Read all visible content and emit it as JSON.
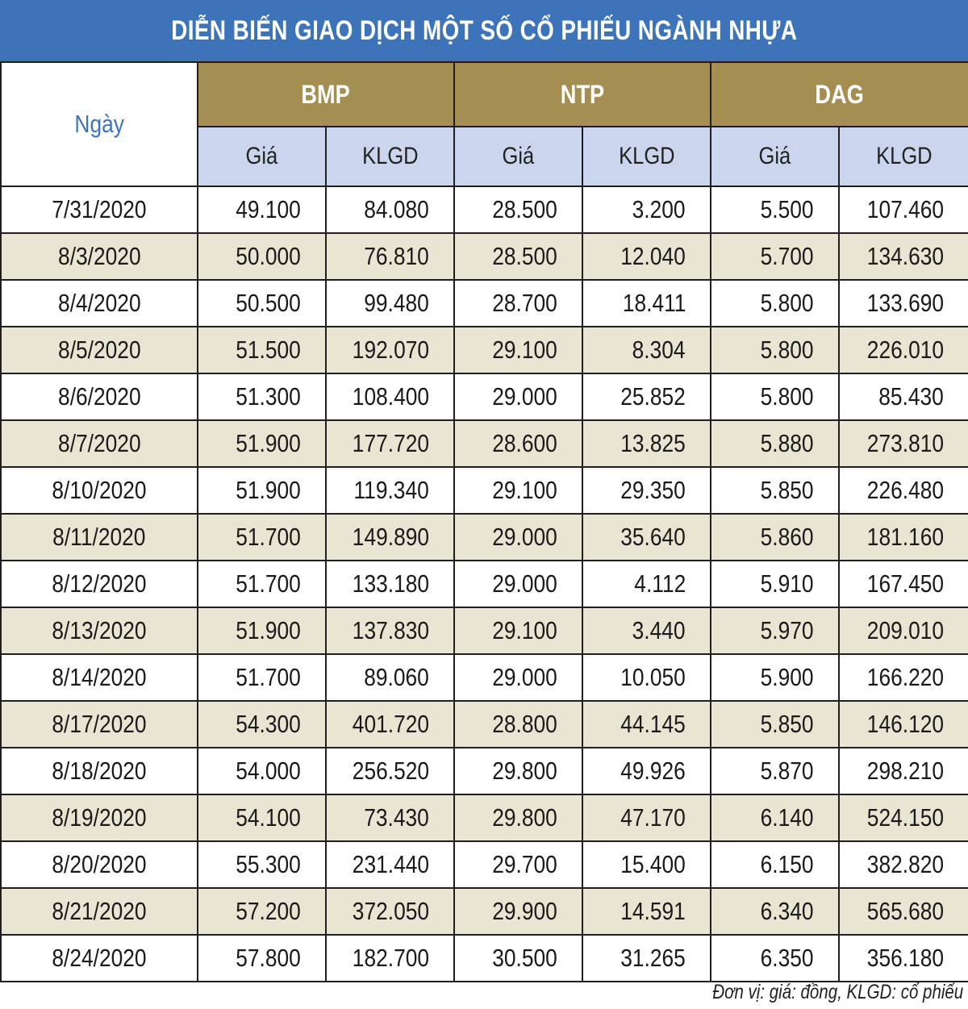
{
  "title": "DIỄN BIẾN GIAO DỊCH MỘT SỐ CỔ PHIẾU NGÀNH NHỰA",
  "colors": {
    "title_bg": "#3d74b9",
    "stock_header_bg": "#a58e52",
    "sub_header_bg": "#cbd6ee",
    "stripe_bg": "#e9e5d3"
  },
  "headers": {
    "date": "Ngày",
    "stocks": [
      "BMP",
      "NTP",
      "DAG"
    ],
    "price": "Giá",
    "volume": "KLGD"
  },
  "chart_data": {
    "type": "table",
    "title": "DIỄN BIẾN GIAO DỊCH MỘT SỐ CỔ PHIẾU NGÀNH NHỰA",
    "columns": [
      "Ngày",
      "BMP Giá",
      "BMP KLGD",
      "NTP Giá",
      "NTP KLGD",
      "DAG Giá",
      "DAG KLGD"
    ],
    "rows": [
      [
        "7/31/2020",
        "49.100",
        "84.080",
        "28.500",
        "3.200",
        "5.500",
        "107.460"
      ],
      [
        "8/3/2020",
        "50.000",
        "76.810",
        "28.500",
        "12.040",
        "5.700",
        "134.630"
      ],
      [
        "8/4/2020",
        "50.500",
        "99.480",
        "28.700",
        "18.411",
        "5.800",
        "133.690"
      ],
      [
        "8/5/2020",
        "51.500",
        "192.070",
        "29.100",
        "8.304",
        "5.800",
        "226.010"
      ],
      [
        "8/6/2020",
        "51.300",
        "108.400",
        "29.000",
        "25.852",
        "5.800",
        "85.430"
      ],
      [
        "8/7/2020",
        "51.900",
        "177.720",
        "28.600",
        "13.825",
        "5.880",
        "273.810"
      ],
      [
        "8/10/2020",
        "51.900",
        "119.340",
        "29.100",
        "29.350",
        "5.850",
        "226.480"
      ],
      [
        "8/11/2020",
        "51.700",
        "149.890",
        "29.000",
        "35.640",
        "5.860",
        "181.160"
      ],
      [
        "8/12/2020",
        "51.700",
        "133.180",
        "29.000",
        "4.112",
        "5.910",
        "167.450"
      ],
      [
        "8/13/2020",
        "51.900",
        "137.830",
        "29.100",
        "3.440",
        "5.970",
        "209.010"
      ],
      [
        "8/14/2020",
        "51.700",
        "89.060",
        "29.000",
        "10.050",
        "5.900",
        "166.220"
      ],
      [
        "8/17/2020",
        "54.300",
        "401.720",
        "28.800",
        "44.145",
        "5.850",
        "146.120"
      ],
      [
        "8/18/2020",
        "54.000",
        "256.520",
        "29.800",
        "49.926",
        "5.870",
        "298.210"
      ],
      [
        "8/19/2020",
        "54.100",
        "73.430",
        "29.800",
        "47.170",
        "6.140",
        "524.150"
      ],
      [
        "8/20/2020",
        "55.300",
        "231.440",
        "29.700",
        "15.400",
        "6.150",
        "382.820"
      ],
      [
        "8/21/2020",
        "57.200",
        "372.050",
        "29.900",
        "14.591",
        "6.340",
        "565.680"
      ],
      [
        "8/24/2020",
        "57.800",
        "182.700",
        "30.500",
        "31.265",
        "6.350",
        "356.180"
      ]
    ]
  },
  "footnote": "Đơn vị: giá: đồng, KLGD: cổ phiếu"
}
